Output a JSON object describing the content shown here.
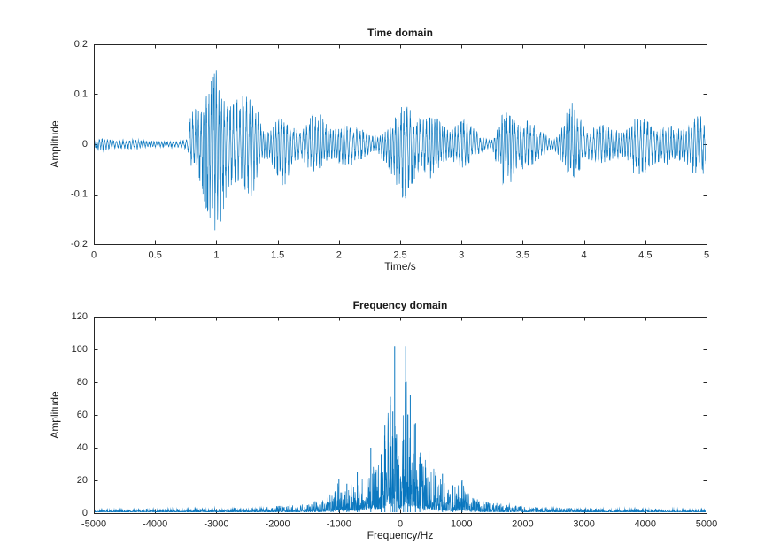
{
  "figure": {
    "background": "#ffffff",
    "line_color": "#0072BD",
    "axis_color": "#262626",
    "tick_label_color": "#262626"
  },
  "chart_data": [
    {
      "type": "line",
      "series_kind": "audio-waveform",
      "title": "Time domain",
      "xlabel": "Time/s",
      "ylabel": "Amplitude",
      "xlim": [
        0,
        5
      ],
      "ylim": [
        -0.2,
        0.2
      ],
      "grid": false,
      "legend": null,
      "xticks": [
        0,
        0.5,
        1,
        1.5,
        2,
        2.5,
        3,
        3.5,
        4,
        4.5,
        5
      ],
      "xtick_labels": [
        "0",
        "0.5",
        "1",
        "1.5",
        "2",
        "2.5",
        "3",
        "3.5",
        "4",
        "4.5",
        "5"
      ],
      "yticks": [
        -0.2,
        -0.1,
        0,
        0.1,
        0.2
      ],
      "ytick_labels": [
        "-0.2",
        "-0.1",
        "0",
        "0.1",
        "0.2"
      ],
      "envelope": {
        "t": [
          0.0,
          0.05,
          0.1,
          0.15,
          0.2,
          0.3,
          0.4,
          0.5,
          0.6,
          0.7,
          0.76,
          0.8,
          0.84,
          0.88,
          0.92,
          0.96,
          1.0,
          1.04,
          1.08,
          1.12,
          1.16,
          1.2,
          1.25,
          1.3,
          1.35,
          1.4,
          1.45,
          1.5,
          1.55,
          1.6,
          1.65,
          1.7,
          1.75,
          1.8,
          1.85,
          1.9,
          1.95,
          2.0,
          2.05,
          2.1,
          2.15,
          2.2,
          2.25,
          2.3,
          2.35,
          2.4,
          2.45,
          2.5,
          2.55,
          2.6,
          2.65,
          2.7,
          2.75,
          2.8,
          2.85,
          2.9,
          2.95,
          3.0,
          3.05,
          3.1,
          3.15,
          3.2,
          3.25,
          3.3,
          3.35,
          3.4,
          3.45,
          3.5,
          3.55,
          3.6,
          3.65,
          3.7,
          3.75,
          3.8,
          3.85,
          3.9,
          3.95,
          4.0,
          4.05,
          4.1,
          4.15,
          4.2,
          4.25,
          4.3,
          4.35,
          4.4,
          4.45,
          4.5,
          4.55,
          4.6,
          4.65,
          4.7,
          4.75,
          4.8,
          4.85,
          4.9,
          4.95,
          5.0
        ],
        "upper": [
          0.006,
          0.012,
          0.012,
          0.008,
          0.008,
          0.01,
          0.007,
          0.006,
          0.005,
          0.006,
          0.01,
          0.075,
          0.07,
          0.08,
          0.11,
          0.14,
          0.15,
          0.11,
          0.08,
          0.08,
          0.09,
          0.095,
          0.1,
          0.1,
          0.06,
          0.025,
          0.03,
          0.055,
          0.06,
          0.05,
          0.03,
          0.03,
          0.05,
          0.065,
          0.06,
          0.04,
          0.03,
          0.035,
          0.045,
          0.04,
          0.035,
          0.03,
          0.02,
          0.015,
          0.02,
          0.03,
          0.05,
          0.075,
          0.08,
          0.065,
          0.05,
          0.055,
          0.06,
          0.055,
          0.04,
          0.03,
          0.04,
          0.05,
          0.045,
          0.035,
          0.02,
          0.01,
          0.01,
          0.04,
          0.07,
          0.06,
          0.04,
          0.04,
          0.05,
          0.04,
          0.025,
          0.015,
          0.01,
          0.02,
          0.06,
          0.09,
          0.07,
          0.04,
          0.03,
          0.035,
          0.04,
          0.035,
          0.03,
          0.025,
          0.03,
          0.05,
          0.06,
          0.055,
          0.04,
          0.03,
          0.035,
          0.04,
          0.035,
          0.03,
          0.04,
          0.055,
          0.06,
          0.03
        ],
        "lower": [
          0.006,
          0.012,
          0.012,
          0.008,
          0.008,
          0.01,
          0.007,
          0.006,
          0.005,
          0.006,
          0.01,
          0.05,
          0.06,
          0.09,
          0.14,
          0.17,
          0.19,
          0.16,
          0.11,
          0.085,
          0.08,
          0.07,
          0.13,
          0.1,
          0.06,
          0.025,
          0.04,
          0.07,
          0.09,
          0.06,
          0.03,
          0.04,
          0.05,
          0.06,
          0.05,
          0.04,
          0.03,
          0.04,
          0.05,
          0.045,
          0.035,
          0.03,
          0.02,
          0.015,
          0.03,
          0.05,
          0.08,
          0.11,
          0.13,
          0.08,
          0.05,
          0.06,
          0.07,
          0.06,
          0.04,
          0.03,
          0.04,
          0.05,
          0.045,
          0.03,
          0.02,
          0.01,
          0.01,
          0.05,
          0.09,
          0.08,
          0.05,
          0.05,
          0.05,
          0.04,
          0.025,
          0.015,
          0.01,
          0.03,
          0.05,
          0.07,
          0.06,
          0.04,
          0.03,
          0.04,
          0.04,
          0.035,
          0.03,
          0.025,
          0.035,
          0.06,
          0.07,
          0.06,
          0.045,
          0.035,
          0.04,
          0.045,
          0.04,
          0.03,
          0.05,
          0.07,
          0.08,
          0.04
        ]
      }
    },
    {
      "type": "line",
      "series_kind": "magnitude-spectrum",
      "title": "Frequency domain",
      "xlabel": "Frequency/Hz",
      "ylabel": "Amplitude",
      "xlim": [
        -5000,
        5000
      ],
      "ylim": [
        0,
        120
      ],
      "grid": false,
      "legend": null,
      "xticks": [
        -5000,
        -4000,
        -3000,
        -2000,
        -1000,
        0,
        1000,
        2000,
        3000,
        4000,
        5000
      ],
      "xtick_labels": [
        "-5000",
        "-4000",
        "-3000",
        "-2000",
        "-1000",
        "0",
        "1000",
        "2000",
        "3000",
        "4000",
        "5000"
      ],
      "yticks": [
        0,
        20,
        40,
        60,
        80,
        100,
        120
      ],
      "ytick_labels": [
        "0",
        "20",
        "40",
        "60",
        "80",
        "100",
        "120"
      ],
      "envelope_abs_f": {
        "f": [
          0,
          40,
          80,
          100,
          130,
          160,
          200,
          250,
          300,
          380,
          450,
          520,
          600,
          700,
          800,
          900,
          1000,
          1100,
          1250,
          1500,
          1750,
          2000,
          2300,
          2600,
          3000,
          3500,
          4000,
          4500,
          5000
        ],
        "amp": [
          25,
          55,
          100,
          95,
          60,
          70,
          65,
          50,
          40,
          32,
          38,
          30,
          24,
          20,
          18,
          16,
          20,
          12,
          8,
          6,
          5,
          4,
          3,
          3,
          2.5,
          2,
          2,
          1.8,
          1.5
        ]
      },
      "peaks": [
        [
          -90,
          102
        ],
        [
          90,
          102
        ],
        [
          -160,
          71
        ],
        [
          165,
          72
        ],
        [
          -120,
          62
        ],
        [
          125,
          60
        ],
        [
          -250,
          54
        ],
        [
          250,
          55
        ],
        [
          -60,
          48
        ],
        [
          55,
          45
        ],
        [
          -480,
          40
        ],
        [
          470,
          38
        ],
        [
          -310,
          36
        ],
        [
          320,
          34
        ],
        [
          -700,
          25
        ],
        [
          690,
          24
        ],
        [
          -1000,
          21
        ],
        [
          1010,
          20
        ],
        [
          -870,
          18
        ],
        [
          860,
          17
        ]
      ],
      "noise_floor": 0.8
    }
  ]
}
